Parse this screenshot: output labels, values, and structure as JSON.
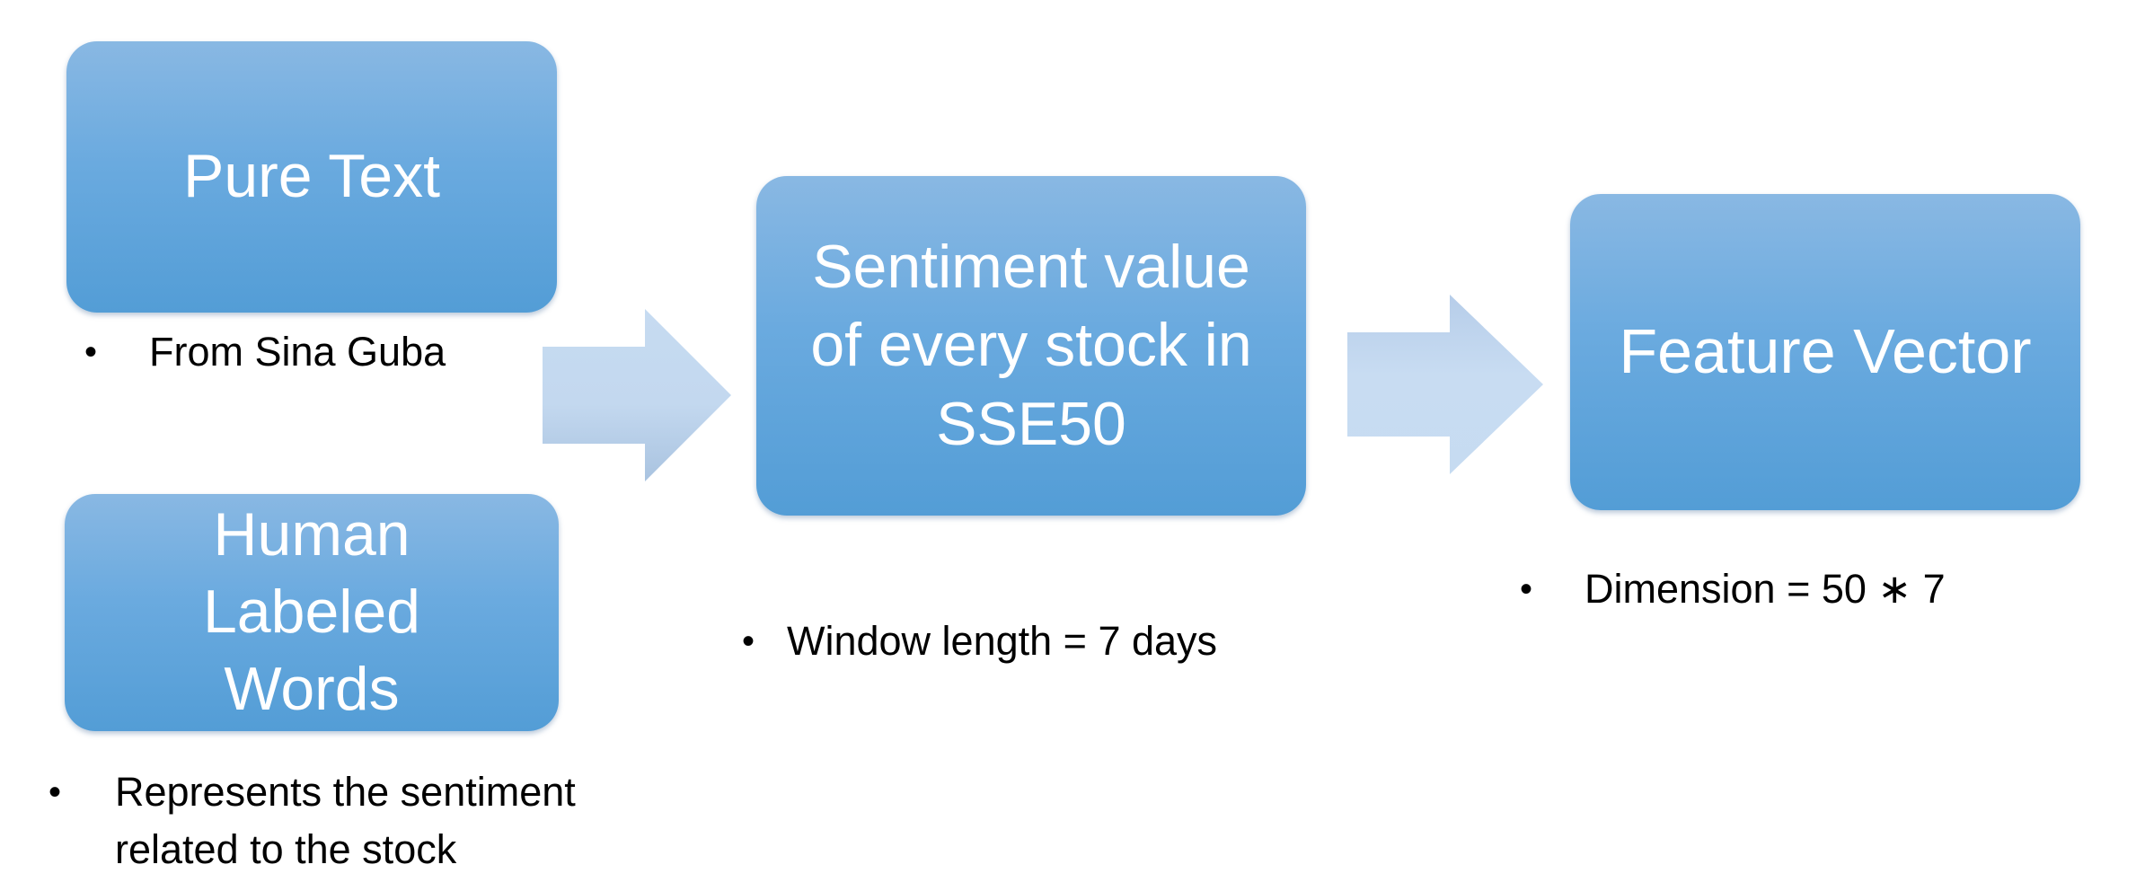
{
  "boxes": {
    "pure_text": "Pure Text",
    "human_labeled": "Human\nLabeled\nWords",
    "sentiment": "Sentiment value\nof every stock in\nSSE50",
    "feature_vector": "Feature Vector"
  },
  "notes": {
    "sina": "From Sina Guba",
    "represents_line1": "Represents the sentiment",
    "represents_line2": "related to the stock",
    "window": "Window length = 7 days",
    "dimension": "Dimension = 50 ∗ 7"
  },
  "bullet_glyph": "•",
  "colors": {
    "box_top": "#89b8e3",
    "box_bottom": "#539dd6",
    "arrow_light": "#c6dbf1",
    "arrow_dark": "#a9c3e0"
  }
}
